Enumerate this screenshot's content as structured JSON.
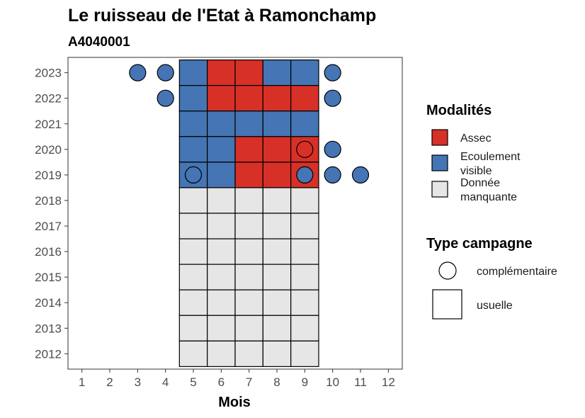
{
  "chart_data": {
    "type": "heatmap",
    "title": "Le ruisseau de l'Etat à Ramonchamp",
    "subtitle": "A4040001",
    "xlabel": "Mois",
    "ylabel": "",
    "x_ticks": [
      "1",
      "2",
      "3",
      "4",
      "5",
      "6",
      "7",
      "8",
      "9",
      "10",
      "11",
      "12"
    ],
    "y_ticks": [
      "2012",
      "2013",
      "2014",
      "2015",
      "2016",
      "2017",
      "2018",
      "2019",
      "2020",
      "2021",
      "2022",
      "2023"
    ],
    "xlim": [
      0.5,
      12.5
    ],
    "ylim": [
      2011.4,
      2023.6
    ],
    "grid": false,
    "legend_position": "right",
    "colors": {
      "Assec": "#d73027",
      "Ecoulement visible": "#4575b4",
      "Donnée manquante": "#e6e6e6"
    },
    "legend": {
      "modalites_title": "Modalités",
      "modalites": [
        {
          "key": "Assec",
          "lines": [
            "Assec"
          ]
        },
        {
          "key": "Ecoulement visible",
          "lines": [
            "Ecoulement",
            "visible"
          ]
        },
        {
          "key": "Donnée manquante",
          "lines": [
            "Donnée",
            "manquante"
          ]
        }
      ],
      "campagne_title": "Type campagne",
      "campagne": [
        {
          "shape": "circle",
          "label": "complémentaire"
        },
        {
          "shape": "square",
          "label": "usuelle"
        }
      ]
    },
    "usuelle": [
      {
        "year": 2023,
        "month": 5,
        "value": "Ecoulement visible"
      },
      {
        "year": 2023,
        "month": 6,
        "value": "Assec"
      },
      {
        "year": 2023,
        "month": 7,
        "value": "Assec"
      },
      {
        "year": 2023,
        "month": 8,
        "value": "Ecoulement visible"
      },
      {
        "year": 2023,
        "month": 9,
        "value": "Ecoulement visible"
      },
      {
        "year": 2022,
        "month": 5,
        "value": "Ecoulement visible"
      },
      {
        "year": 2022,
        "month": 6,
        "value": "Assec"
      },
      {
        "year": 2022,
        "month": 7,
        "value": "Assec"
      },
      {
        "year": 2022,
        "month": 8,
        "value": "Assec"
      },
      {
        "year": 2022,
        "month": 9,
        "value": "Assec"
      },
      {
        "year": 2021,
        "month": 5,
        "value": "Ecoulement visible"
      },
      {
        "year": 2021,
        "month": 6,
        "value": "Ecoulement visible"
      },
      {
        "year": 2021,
        "month": 7,
        "value": "Ecoulement visible"
      },
      {
        "year": 2021,
        "month": 8,
        "value": "Ecoulement visible"
      },
      {
        "year": 2021,
        "month": 9,
        "value": "Ecoulement visible"
      },
      {
        "year": 2020,
        "month": 5,
        "value": "Ecoulement visible"
      },
      {
        "year": 2020,
        "month": 6,
        "value": "Ecoulement visible"
      },
      {
        "year": 2020,
        "month": 7,
        "value": "Assec"
      },
      {
        "year": 2020,
        "month": 8,
        "value": "Assec"
      },
      {
        "year": 2020,
        "month": 9,
        "value": "Assec"
      },
      {
        "year": 2019,
        "month": 5,
        "value": "Ecoulement visible"
      },
      {
        "year": 2019,
        "month": 6,
        "value": "Ecoulement visible"
      },
      {
        "year": 2019,
        "month": 7,
        "value": "Assec"
      },
      {
        "year": 2019,
        "month": 8,
        "value": "Assec"
      },
      {
        "year": 2019,
        "month": 9,
        "value": "Assec"
      },
      {
        "year": 2018,
        "month": 5,
        "value": "Donnée manquante"
      },
      {
        "year": 2018,
        "month": 6,
        "value": "Donnée manquante"
      },
      {
        "year": 2018,
        "month": 7,
        "value": "Donnée manquante"
      },
      {
        "year": 2018,
        "month": 8,
        "value": "Donnée manquante"
      },
      {
        "year": 2018,
        "month": 9,
        "value": "Donnée manquante"
      },
      {
        "year": 2017,
        "month": 5,
        "value": "Donnée manquante"
      },
      {
        "year": 2017,
        "month": 6,
        "value": "Donnée manquante"
      },
      {
        "year": 2017,
        "month": 7,
        "value": "Donnée manquante"
      },
      {
        "year": 2017,
        "month": 8,
        "value": "Donnée manquante"
      },
      {
        "year": 2017,
        "month": 9,
        "value": "Donnée manquante"
      },
      {
        "year": 2016,
        "month": 5,
        "value": "Donnée manquante"
      },
      {
        "year": 2016,
        "month": 6,
        "value": "Donnée manquante"
      },
      {
        "year": 2016,
        "month": 7,
        "value": "Donnée manquante"
      },
      {
        "year": 2016,
        "month": 8,
        "value": "Donnée manquante"
      },
      {
        "year": 2016,
        "month": 9,
        "value": "Donnée manquante"
      },
      {
        "year": 2015,
        "month": 5,
        "value": "Donnée manquante"
      },
      {
        "year": 2015,
        "month": 6,
        "value": "Donnée manquante"
      },
      {
        "year": 2015,
        "month": 7,
        "value": "Donnée manquante"
      },
      {
        "year": 2015,
        "month": 8,
        "value": "Donnée manquante"
      },
      {
        "year": 2015,
        "month": 9,
        "value": "Donnée manquante"
      },
      {
        "year": 2014,
        "month": 5,
        "value": "Donnée manquante"
      },
      {
        "year": 2014,
        "month": 6,
        "value": "Donnée manquante"
      },
      {
        "year": 2014,
        "month": 7,
        "value": "Donnée manquante"
      },
      {
        "year": 2014,
        "month": 8,
        "value": "Donnée manquante"
      },
      {
        "year": 2014,
        "month": 9,
        "value": "Donnée manquante"
      },
      {
        "year": 2013,
        "month": 5,
        "value": "Donnée manquante"
      },
      {
        "year": 2013,
        "month": 6,
        "value": "Donnée manquante"
      },
      {
        "year": 2013,
        "month": 7,
        "value": "Donnée manquante"
      },
      {
        "year": 2013,
        "month": 8,
        "value": "Donnée manquante"
      },
      {
        "year": 2013,
        "month": 9,
        "value": "Donnée manquante"
      },
      {
        "year": 2012,
        "month": 5,
        "value": "Donnée manquante"
      },
      {
        "year": 2012,
        "month": 6,
        "value": "Donnée manquante"
      },
      {
        "year": 2012,
        "month": 7,
        "value": "Donnée manquante"
      },
      {
        "year": 2012,
        "month": 8,
        "value": "Donnée manquante"
      },
      {
        "year": 2012,
        "month": 9,
        "value": "Donnée manquante"
      }
    ],
    "complementaire": [
      {
        "year": 2023,
        "month": 3,
        "value": "Ecoulement visible"
      },
      {
        "year": 2023,
        "month": 4,
        "value": "Ecoulement visible"
      },
      {
        "year": 2023,
        "month": 10,
        "value": "Ecoulement visible"
      },
      {
        "year": 2022,
        "month": 4,
        "value": "Ecoulement visible"
      },
      {
        "year": 2022,
        "month": 10,
        "value": "Ecoulement visible"
      },
      {
        "year": 2020,
        "month": 9,
        "value": "Assec"
      },
      {
        "year": 2020,
        "month": 10,
        "value": "Ecoulement visible"
      },
      {
        "year": 2019,
        "month": 5,
        "value": "Ecoulement visible"
      },
      {
        "year": 2019,
        "month": 9,
        "value": "Ecoulement visible"
      },
      {
        "year": 2019,
        "month": 10,
        "value": "Ecoulement visible"
      },
      {
        "year": 2019,
        "month": 11,
        "value": "Ecoulement visible"
      }
    ]
  }
}
